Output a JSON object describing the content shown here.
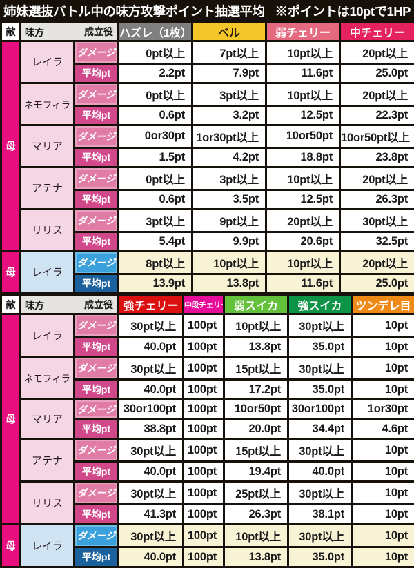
{
  "title": {
    "main": "姉妹選抜バトル中の味方攻撃ポイント抽選平均",
    "note": "※ポイントは10ptで1HP"
  },
  "labels": {
    "enemy": "敵",
    "ally": "味方",
    "role": "成立役",
    "mother": "母",
    "damage": "ダメージ",
    "avg": "平均pt"
  },
  "colors": {
    "mother_bg": "#e60f7d",
    "name_pink": "#f4d6e4",
    "dmg_pink": "#e07ca6",
    "avg_pink": "#d1498a",
    "name_blue": "#cfe3f3",
    "dmg_blue": "#3ba1dc",
    "avg_blue": "#1a619e",
    "cream": "#f8f3d5",
    "corner_bg": "#e6e4e1",
    "line": "#17110c"
  },
  "tables": [
    {
      "columns": [
        {
          "label": "ハズレ（1枚）",
          "bg": "#7f7f7f",
          "fg": "#ffffff"
        },
        {
          "label": "ベル",
          "bg": "#f4c62a",
          "fg": "#2a2208"
        },
        {
          "label": "弱チェリー",
          "bg": "#e5697f",
          "fg": "#ffffff"
        },
        {
          "label": "中チェリー",
          "bg": "#e52260",
          "fg": "#ffffff"
        }
      ],
      "rows": [
        {
          "ally": "レイラ",
          "highlight": false,
          "damage": [
            "0pt以上",
            "7pt以上",
            "10pt以上",
            "20pt以上"
          ],
          "avg": [
            "2.2pt",
            "7.9pt",
            "11.6pt",
            "25.0pt"
          ]
        },
        {
          "ally": "ネモフィラ",
          "highlight": false,
          "damage": [
            "0pt以上",
            "3pt以上",
            "10pt以上",
            "20pt以上"
          ],
          "avg": [
            "0.6pt",
            "3.2pt",
            "12.5pt",
            "22.3pt"
          ]
        },
        {
          "ally": "マリア",
          "highlight": false,
          "damage": [
            "0or30pt",
            "1or30pt以上",
            "10or50pt",
            "10or50pt以上"
          ],
          "avg": [
            "1.5pt",
            "4.2pt",
            "18.8pt",
            "23.8pt"
          ]
        },
        {
          "ally": "アテナ",
          "highlight": false,
          "damage": [
            "0pt以上",
            "3pt以上",
            "10pt以上",
            "20pt以上"
          ],
          "avg": [
            "0.6pt",
            "3.5pt",
            "12.5pt",
            "26.3pt"
          ]
        },
        {
          "ally": "リリス",
          "highlight": false,
          "damage": [
            "3pt以上",
            "9pt以上",
            "20pt以上",
            "30pt以上"
          ],
          "avg": [
            "5.4pt",
            "9.9pt",
            "20.6pt",
            "32.5pt"
          ]
        },
        {
          "ally": "レイラ",
          "highlight": true,
          "damage": [
            "8pt以上",
            "10pt以上",
            "10pt以上",
            "20pt以上"
          ],
          "avg": [
            "13.9pt",
            "13.8pt",
            "11.6pt",
            "25.0pt"
          ]
        }
      ]
    },
    {
      "columns": [
        {
          "label": "強チェリー",
          "bg": "#db1111",
          "fg": "#ffffff"
        },
        {
          "label": "中段チェリー",
          "bg": "#e80c9b",
          "fg": "#ffffff",
          "narrow": true
        },
        {
          "label": "弱スイカ",
          "bg": "#63c13c",
          "fg": "#ffffff"
        },
        {
          "label": "強スイカ",
          "bg": "#0e9447",
          "fg": "#ffffff"
        },
        {
          "label": "ツンデレ目",
          "bg": "#f08a16",
          "fg": "#ffffff"
        }
      ],
      "rows": [
        {
          "ally": "レイラ",
          "highlight": false,
          "damage": [
            "30pt以上",
            "100pt",
            "10pt以上",
            "30pt以上",
            "10pt"
          ],
          "avg": [
            "40.0pt",
            "100pt",
            "13.8pt",
            "35.0pt",
            "10pt"
          ]
        },
        {
          "ally": "ネモフィラ",
          "highlight": false,
          "damage": [
            "30pt以上",
            "100pt",
            "15pt以上",
            "30pt以上",
            "10pt"
          ],
          "avg": [
            "40.0pt",
            "100pt",
            "17.2pt",
            "35.0pt",
            "10pt"
          ]
        },
        {
          "ally": "マリア",
          "highlight": false,
          "damage": [
            "30or100pt",
            "100pt",
            "10or50pt",
            "30or100pt",
            "1or30pt"
          ],
          "avg": [
            "38.8pt",
            "100pt",
            "20.0pt",
            "34.4pt",
            "4.6pt"
          ]
        },
        {
          "ally": "アテナ",
          "highlight": false,
          "damage": [
            "30pt以上",
            "100pt",
            "15pt以上",
            "30pt以上",
            "10pt"
          ],
          "avg": [
            "40.0pt",
            "100pt",
            "19.4pt",
            "40.0pt",
            "10pt"
          ]
        },
        {
          "ally": "リリス",
          "highlight": false,
          "damage": [
            "30pt以上",
            "100pt",
            "25pt以上",
            "30pt以上",
            "10pt"
          ],
          "avg": [
            "41.3pt",
            "100pt",
            "26.3pt",
            "38.1pt",
            "10pt"
          ]
        },
        {
          "ally": "レイラ",
          "highlight": true,
          "damage": [
            "30pt以上",
            "100pt",
            "10pt以上",
            "30pt以上",
            "10pt"
          ],
          "avg": [
            "40.0pt",
            "100pt",
            "13.8pt",
            "35.0pt",
            "10pt"
          ]
        }
      ]
    }
  ]
}
